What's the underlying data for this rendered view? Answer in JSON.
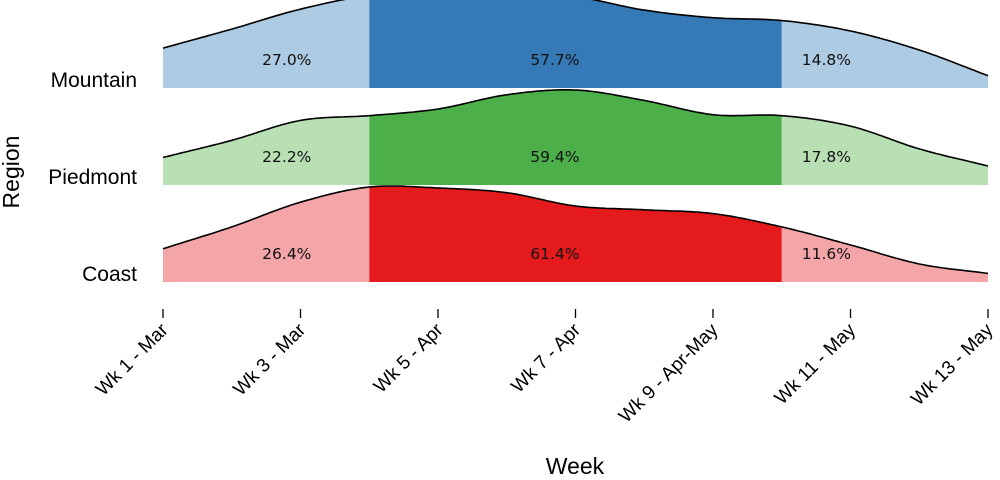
{
  "chart_data": {
    "type": "area",
    "subtype": "ridgeline",
    "xlabel": "Week",
    "ylabel": "Region",
    "x_ticks": [
      {
        "week": 1,
        "label": "Wk 1 - Mar"
      },
      {
        "week": 3,
        "label": "Wk 3 - Mar"
      },
      {
        "week": 5,
        "label": "Wk 5 - Apr"
      },
      {
        "week": 7,
        "label": "Wk 7 - Apr"
      },
      {
        "week": 9,
        "label": "Wk 9 - Apr-May"
      },
      {
        "week": 11,
        "label": "Wk 11 - May"
      },
      {
        "week": 13,
        "label": "Wk 13 - May"
      }
    ],
    "xlim": [
      1,
      13
    ],
    "segment_bounds_week": [
      4,
      10
    ],
    "series": [
      {
        "name": "Mountain",
        "colors": {
          "light": "#aecbe4",
          "dark": "#3579b6"
        },
        "density": [
          [
            1,
            0.42
          ],
          [
            2,
            0.62
          ],
          [
            3,
            0.83
          ],
          [
            4,
            0.97
          ],
          [
            5,
            0.98
          ],
          [
            6,
            0.99
          ],
          [
            7,
            0.96
          ],
          [
            8,
            0.82
          ],
          [
            9,
            0.74
          ],
          [
            10,
            0.71
          ],
          [
            11,
            0.6
          ],
          [
            12,
            0.4
          ],
          [
            13,
            0.13
          ]
        ],
        "segments": [
          {
            "label": "27.0%",
            "at_week": 2.8
          },
          {
            "label": "57.7%",
            "at_week": 6.7
          },
          {
            "label": "14.8%",
            "at_week": 10.65
          }
        ]
      },
      {
        "name": "Piedmont",
        "colors": {
          "light": "#b8e0b4",
          "dark": "#4daf4a"
        },
        "density": [
          [
            1,
            0.29
          ],
          [
            2,
            0.47
          ],
          [
            3,
            0.68
          ],
          [
            4,
            0.73
          ],
          [
            5,
            0.8
          ],
          [
            6,
            0.95
          ],
          [
            7,
            1.0
          ],
          [
            8,
            0.89
          ],
          [
            9,
            0.74
          ],
          [
            10,
            0.73
          ],
          [
            11,
            0.62
          ],
          [
            12,
            0.38
          ],
          [
            13,
            0.2
          ]
        ],
        "segments": [
          {
            "label": "22.2%",
            "at_week": 2.8
          },
          {
            "label": "59.4%",
            "at_week": 6.7
          },
          {
            "label": "17.8%",
            "at_week": 10.65
          }
        ]
      },
      {
        "name": "Coast",
        "colors": {
          "light": "#f4a5a8",
          "dark": "#e41a1c"
        },
        "density": [
          [
            1,
            0.35
          ],
          [
            2,
            0.58
          ],
          [
            3,
            0.84
          ],
          [
            4,
            1.0
          ],
          [
            5,
            0.99
          ],
          [
            6,
            0.94
          ],
          [
            7,
            0.8
          ],
          [
            8,
            0.76
          ],
          [
            9,
            0.72
          ],
          [
            10,
            0.58
          ],
          [
            11,
            0.39
          ],
          [
            12,
            0.19
          ],
          [
            13,
            0.09
          ]
        ],
        "segments": [
          {
            "label": "26.4%",
            "at_week": 2.8
          },
          {
            "label": "61.4%",
            "at_week": 6.7
          },
          {
            "label": "11.6%",
            "at_week": 10.65
          }
        ]
      }
    ]
  }
}
